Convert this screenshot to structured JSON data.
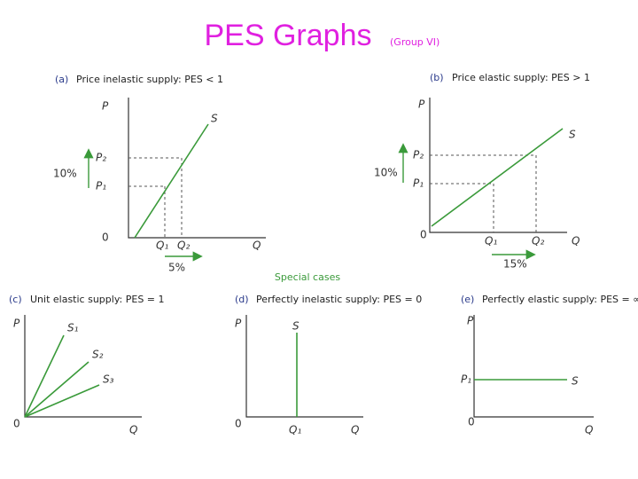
{
  "title": "PES Graphs",
  "subtitle": "(Group VI)",
  "special_cases": "Special cases",
  "panels": [
    {
      "label": "(a)",
      "caption": "Price inelastic supply: PES < 1",
      "axis_p": "P",
      "axis_q": "Q",
      "origin": "0",
      "curve": "S",
      "p2": "P₂",
      "p1": "P₁",
      "q1": "Q₁",
      "q2": "Q₂",
      "price_change": "10%",
      "quantity_change": "5%"
    },
    {
      "label": "(b)",
      "caption": "Price elastic supply: PES > 1",
      "axis_p": "P",
      "axis_q": "Q",
      "origin": "0",
      "curve": "S",
      "p2": "P₂",
      "p1": "P₁",
      "q1": "Q₁",
      "q2": "Q₂",
      "price_change": "10%",
      "quantity_change": "15%"
    },
    {
      "label": "(c)",
      "caption": "Unit elastic supply: PES = 1",
      "axis_p": "P",
      "axis_q": "Q",
      "origin": "0",
      "curves": [
        "S₁",
        "S₂",
        "S₃"
      ]
    },
    {
      "label": "(d)",
      "caption": "Perfectly inelastic supply: PES = 0",
      "axis_p": "P",
      "axis_q": "Q",
      "origin": "0",
      "curve": "S",
      "q1": "Q₁"
    },
    {
      "label": "(e)",
      "caption": "Perfectly elastic supply: PES = ∞",
      "axis_p": "P",
      "axis_q": "Q",
      "origin": "0",
      "curve": "S",
      "p1": "P₁"
    }
  ]
}
